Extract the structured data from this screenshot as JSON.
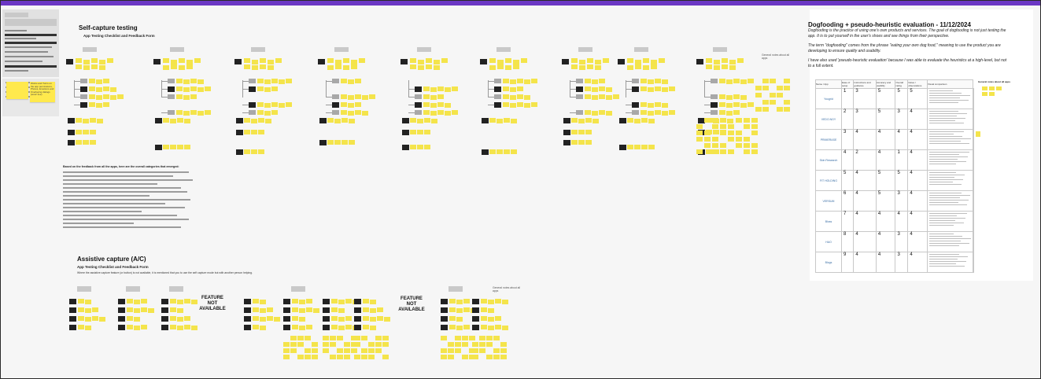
{
  "sections": {
    "self_capture": {
      "title": "Self-capture testing",
      "subtitle": "App Testing Checklist and Feedback Form",
      "general_notes": "General notes about all apps"
    },
    "assistive_capture": {
      "title": "Assistive capture (A/C)",
      "subtitle": "App Testing Checklist and Feedback Form",
      "description": "Where the assistive capture feature (or button) is not available, it is mentioned that you to use the self capture mode but with another person helping.",
      "feature_na_1": "FEATURE NOT AVAILABLE",
      "feature_na_2": "FEATURE NOT AVAILABLE",
      "general_notes": "General notes about all apps"
    }
  },
  "left_sticky": {
    "text": "Works and Turns on the app permissions, Photos, Emotions and Overlaying dialogs (wow! see)"
  },
  "findings": {
    "heading": "Based on the feedback from all the apps, here are the overall categories that emerged:"
  },
  "right_panel": {
    "title": "Dogfooding + pseudo-heuristic evaluation - 11/12/2024",
    "para1": "Dogfooding is the practice of using one's own products and services. The goal of dogfooding is not just testing the app. It is to put yourself in the user's shoes and see things from their perspective.",
    "para2": "The term \"dogfooding\" comes from the phrase \"eating your own dog food,\" meaning to use the product you are developing to ensure quality and usability.",
    "para3": "I have also used 'pseudo-heuristic evaluation' because I was able to evaluate the heuristics at a high-level, but not to a full extent.",
    "side_note": "General notes about all apps",
    "table": {
      "headers": [
        "Name / App",
        "Ease of setup",
        "Instructions and guidance",
        "Accuracy and usability",
        "Overall rating",
        "Notes / observations",
        "Visual comparison"
      ],
      "rows": [
        {
          "logo": "Yougrid",
          "n": "1",
          "a": "3",
          "b": "5",
          "c": "5",
          "d": "5"
        },
        {
          "logo": "VEDO.NGY",
          "n": "2",
          "a": "3",
          "b": "5",
          "c": "3",
          "d": "4"
        },
        {
          "logo": "PRIMERASE",
          "n": "3",
          "a": "4",
          "b": "4",
          "c": "4",
          "d": "4"
        },
        {
          "logo": "Skin Research",
          "n": "4",
          "a": "2",
          "b": "4",
          "c": "1",
          "d": "4"
        },
        {
          "logo": "FIT HOLDING",
          "n": "5",
          "a": "4",
          "b": "5",
          "c": "5",
          "d": "4"
        },
        {
          "logo": "VERSUM",
          "n": "6",
          "a": "4",
          "b": "5",
          "c": "3",
          "d": "4"
        },
        {
          "logo": "Bloss",
          "n": "7",
          "a": "4",
          "b": "4",
          "c": "4",
          "d": "4"
        },
        {
          "logo": "HAO",
          "n": "8",
          "a": "4",
          "b": "4",
          "c": "3",
          "d": "4"
        },
        {
          "logo": "Blogs",
          "n": "9",
          "a": "4",
          "b": "4",
          "c": "3",
          "d": "4"
        }
      ]
    }
  },
  "colors": {
    "top_bar": "#6b37c4",
    "sticky": "#f4e44b",
    "dark_card": "#222222",
    "canvas": "#f6f6f6"
  }
}
